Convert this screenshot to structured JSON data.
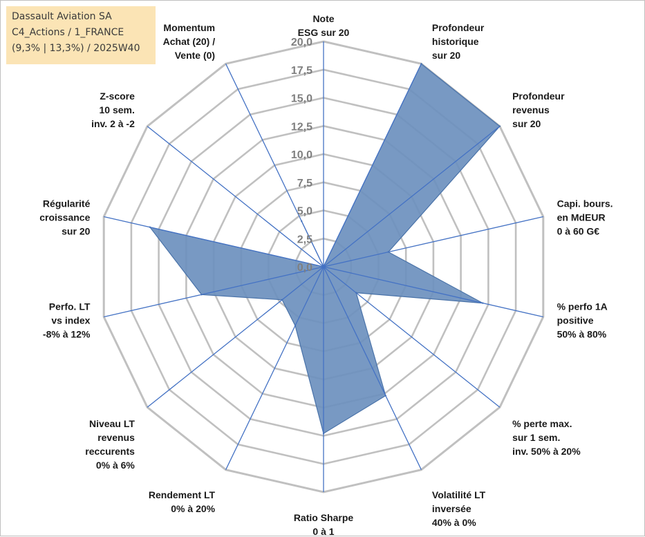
{
  "info_box": {
    "line1": "Dassault Aviation SA",
    "line2": "C4_Actions / 1_FRANCE",
    "line3": "(9,3% | 13,3%) / 2025W40"
  },
  "chart_data": {
    "type": "radar",
    "title": "Dassault Aviation SA",
    "rlim": [
      0,
      20
    ],
    "rticks": [
      "0,0",
      "2,5",
      "5,0",
      "7,5",
      "10,0",
      "12,5",
      "15,0",
      "17,5",
      "20,0"
    ],
    "categories": [
      [
        "Note",
        "ESG sur 20"
      ],
      [
        "Profondeur",
        "historique",
        "sur 20"
      ],
      [
        "Profondeur",
        "revenus",
        "sur 20"
      ],
      [
        "Capi. bours.",
        "en MdEUR",
        "0 à 60 G€"
      ],
      [
        "% perfo 1A",
        "positive",
        "50% à 80%"
      ],
      [
        "% perte max.",
        "sur 1 sem.",
        "inv. 50% à 20%"
      ],
      [
        "Volatilité LT",
        "inversée",
        "40% à 0%"
      ],
      [
        "Ratio Sharpe",
        "0 à 1"
      ],
      [
        "Rendement LT",
        "0% à 20%"
      ],
      [
        "Niveau LT",
        "revenus",
        "reccurents",
        "0% à 6%"
      ],
      [
        "Perfo. LT",
        "vs index",
        "-8% à 12%"
      ],
      [
        "Régularité",
        "croissance",
        "sur 20"
      ],
      [
        "Z-score",
        "10 sem.",
        "inv. 2 à -2"
      ],
      [
        "Momentum",
        "Achat (20) /",
        "Vente (0)"
      ]
    ],
    "series": [
      {
        "name": "Dassault Aviation SA",
        "values": [
          0,
          20,
          20,
          5.9,
          14.5,
          3.7,
          12.7,
          14.8,
          5.8,
          4.7,
          11.1,
          15.8,
          0,
          4.5
        ],
        "color": "#4a73a9"
      }
    ],
    "grid": true,
    "colors": {
      "grid": "#c0c0c0",
      "axis": "#4472c4",
      "fill": "#6d90be",
      "stroke": "#4a73a9"
    }
  }
}
